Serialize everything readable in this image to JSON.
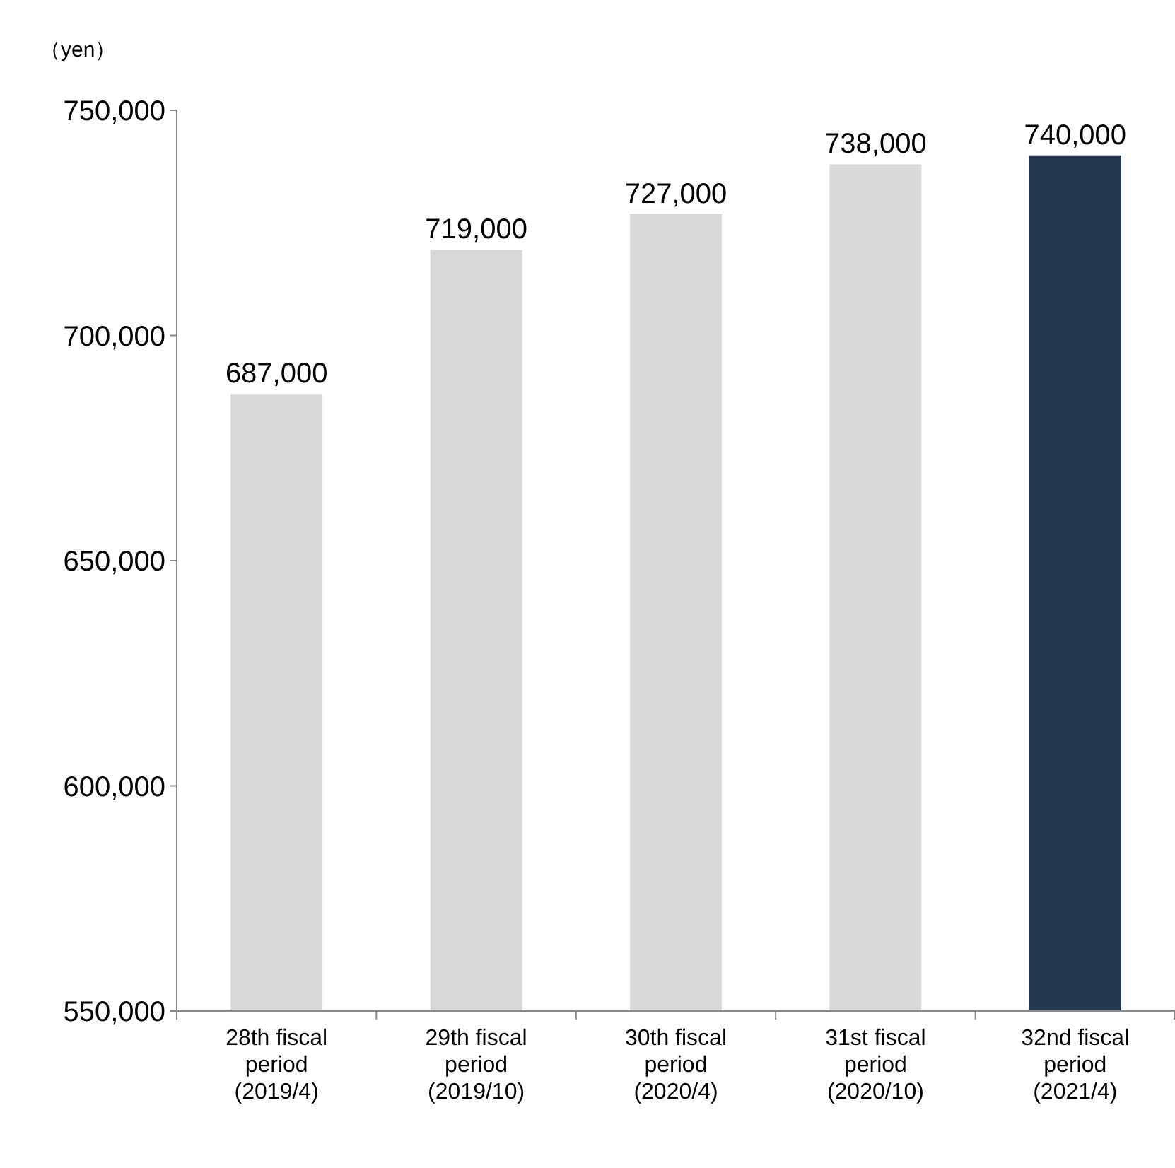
{
  "chart_data": {
    "type": "bar",
    "ylabel": "（yen）",
    "categories": [
      "28th fiscal period (2019/4)",
      "29th fiscal period (2019/10)",
      "30th fiscal period (2020/4)",
      "31st fiscal period (2020/10)",
      "32nd fiscal period (2021/4)"
    ],
    "values": [
      687000,
      719000,
      727000,
      738000,
      740000
    ],
    "value_labels": [
      "687,000",
      "719,000",
      "727,000",
      "738,000",
      "740,000"
    ],
    "colors": [
      "#d9d9d9",
      "#d9d9d9",
      "#d9d9d9",
      "#d9d9d9",
      "#243851"
    ],
    "ylim": [
      550000,
      750000
    ],
    "yticks": [
      {
        "value": 550000,
        "label": "550,000"
      },
      {
        "value": 600000,
        "label": "600,000"
      },
      {
        "value": 650000,
        "label": "650,000"
      },
      {
        "value": 700000,
        "label": "700,000"
      },
      {
        "value": 750000,
        "label": "750,000"
      }
    ]
  }
}
